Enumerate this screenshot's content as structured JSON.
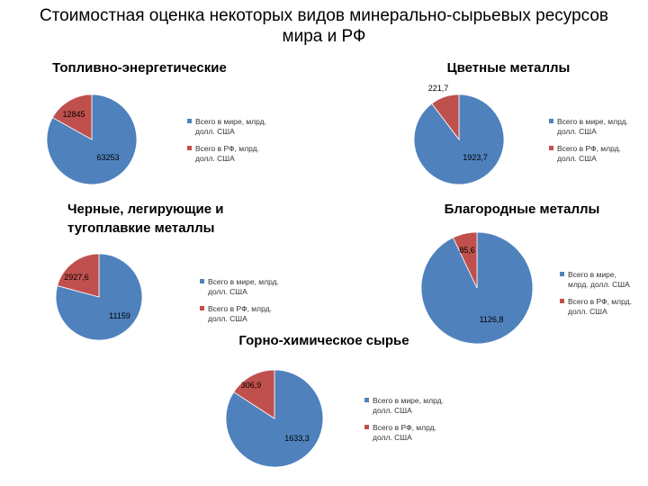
{
  "slide": {
    "title_line1": "Стоимостная оценка некоторых видов минерально-сырьевых ресурсов",
    "title_line2": "мира и РФ"
  },
  "colors": {
    "world": "#4F81BD",
    "russia": "#C0504D"
  },
  "chart_data": [
    {
      "type": "pie",
      "title_lines": [
        "Топливно-энергетические"
      ],
      "labels": [
        "63253",
        "12845"
      ],
      "values": [
        63253,
        12845
      ],
      "legend": [
        [
          "Всего в мире, млрд.",
          "долл. США"
        ],
        [
          "Всего в РФ, млрд.",
          "долл. США"
        ]
      ],
      "legend_position": "right"
    },
    {
      "type": "pie",
      "title_lines": [
        "Цветные металлы"
      ],
      "labels": [
        "1923,7",
        "221,7"
      ],
      "values": [
        1923.7,
        221.7
      ],
      "legend": [
        [
          "Всего в мире, млрд.",
          "долл. США"
        ],
        [
          "Всего в РФ, млрд.",
          "долл. США"
        ]
      ],
      "legend_position": "right"
    },
    {
      "type": "pie",
      "title_lines": [
        "Черные, легирующие и",
        "тугоплавкие металлы"
      ],
      "labels": [
        "11159",
        "2927,6"
      ],
      "values": [
        11159,
        2927.6
      ],
      "legend": [
        [
          "Всего в мире, млрд.",
          "долл. США"
        ],
        [
          "Всего в РФ, млрд.",
          "долл. США"
        ]
      ],
      "legend_position": "right"
    },
    {
      "type": "pie",
      "title_lines": [
        "Благородные металлы"
      ],
      "labels": [
        "1126,8",
        "85,6"
      ],
      "values": [
        1126.8,
        85.6
      ],
      "legend": [
        [
          "Всего в мире,",
          "млрд. долл. США"
        ],
        [
          "Всего в РФ, млрд.",
          "долл. США"
        ]
      ],
      "legend_position": "right"
    },
    {
      "type": "pie",
      "title_lines": [
        "Горно-химическое сырье"
      ],
      "labels": [
        "1633,3",
        "306,9"
      ],
      "values": [
        1633.3,
        306.9
      ],
      "legend": [
        [
          "Всего в мире, млрд.",
          "долл. США"
        ],
        [
          "Всего в РФ, млрд.",
          "долл. США"
        ]
      ],
      "legend_position": "right"
    }
  ]
}
